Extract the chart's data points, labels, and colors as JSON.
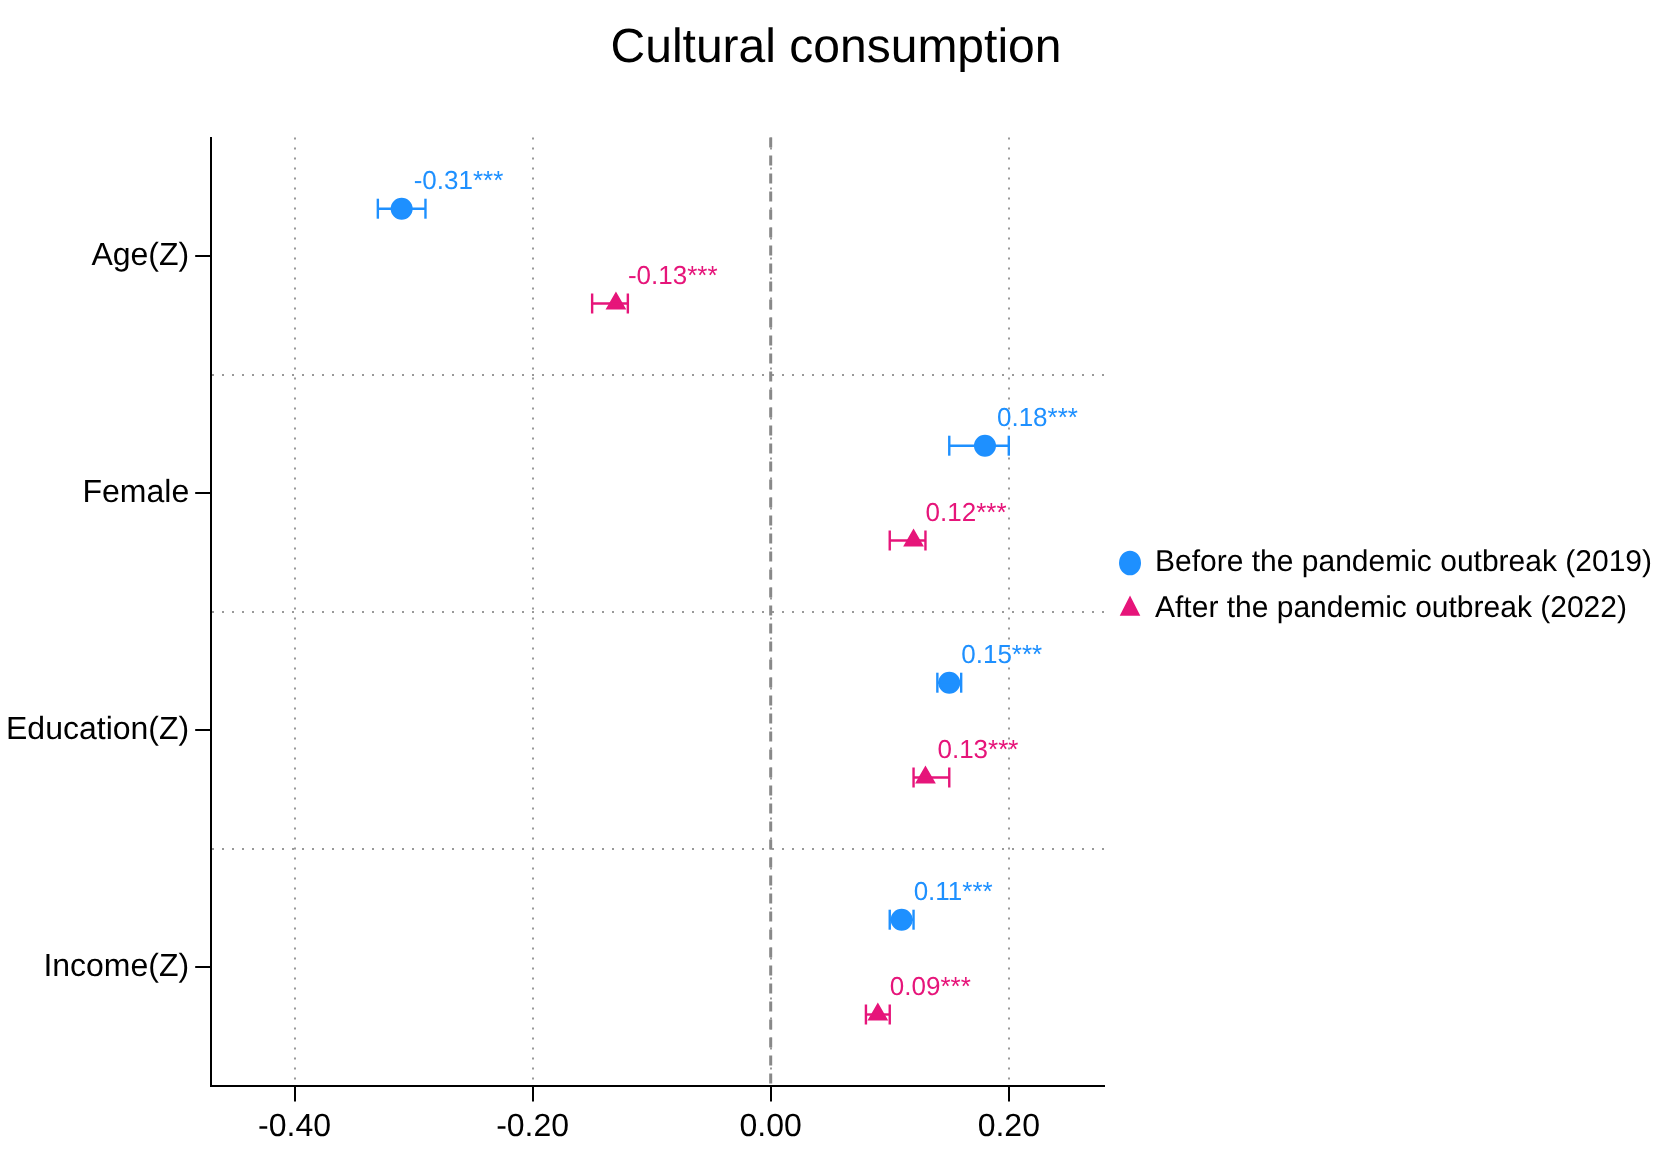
{
  "chart_data": {
    "type": "scatter",
    "title": "Cultural consumption",
    "orientation": "horizontal",
    "categories": [
      "Age(Z)",
      "Female",
      "Education(Z)",
      "Income(Z)"
    ],
    "series": [
      {
        "name": "Before the pandemic outbreak (2019)",
        "color": "#1e90ff",
        "marker": "circle",
        "values": [
          -0.31,
          0.18,
          0.15,
          0.11
        ],
        "errors": [
          [
            -0.33,
            -0.29
          ],
          [
            0.15,
            0.2
          ],
          [
            0.14,
            0.16
          ],
          [
            0.1,
            0.12
          ]
        ],
        "value_labels": [
          "-0.31***",
          "0.18***",
          "0.15***",
          "0.11***"
        ]
      },
      {
        "name": "After the pandemic outbreak (2022)",
        "color": "#e6157a",
        "marker": "triangle",
        "values": [
          -0.13,
          0.12,
          0.13,
          0.09
        ],
        "errors": [
          [
            -0.15,
            -0.12
          ],
          [
            0.1,
            0.13
          ],
          [
            0.12,
            0.15
          ],
          [
            0.08,
            0.1
          ]
        ],
        "value_labels": [
          "-0.13***",
          "0.12***",
          "0.13***",
          "0.09***"
        ]
      }
    ],
    "xlim": [
      -0.47,
      0.28
    ],
    "xticks": [
      {
        "value": -0.4,
        "label": "-0.40"
      },
      {
        "value": -0.2,
        "label": "-0.20"
      },
      {
        "value": 0,
        "label": "0.00"
      },
      {
        "value": 0.2,
        "label": "0.20"
      }
    ],
    "ref_lines": [
      {
        "axis": "x",
        "value": 0,
        "color": "#888888",
        "line_style": "dashed"
      }
    ],
    "grid": true,
    "legend": "right"
  }
}
